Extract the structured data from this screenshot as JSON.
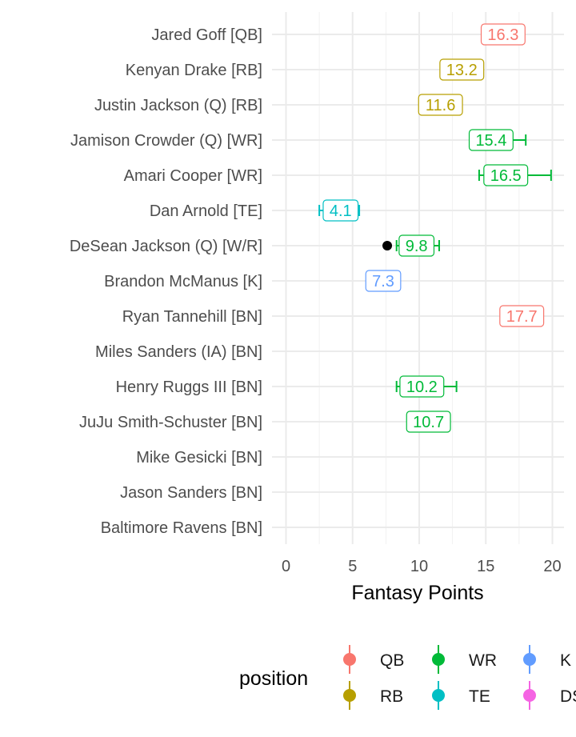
{
  "chart_data": {
    "type": "scatter",
    "xlabel": "Fantasy Points",
    "ylabel": "",
    "xlim": [
      -0.8,
      21
    ],
    "x_ticks": [
      0,
      5,
      10,
      15,
      20
    ],
    "grid": true,
    "legend_title": "position",
    "legend_position": "bottom",
    "colors": {
      "QB": "#F8766D",
      "RB": "#B79F00",
      "WR": "#00BA38",
      "TE": "#00BFC4",
      "K": "#619CFF",
      "DST": "#F564E3",
      "actual": "#000000"
    },
    "legend": [
      {
        "key": "QB",
        "label": "QB"
      },
      {
        "key": "RB",
        "label": "RB"
      },
      {
        "key": "WR",
        "label": "WR"
      },
      {
        "key": "TE",
        "label": "TE"
      },
      {
        "key": "K",
        "label": "K"
      },
      {
        "key": "DST",
        "label": "DST"
      }
    ],
    "players": [
      {
        "name": "Jared Goff [QB]",
        "position": "QB",
        "projection": 16.3,
        "label": "16.3",
        "low": 14.8,
        "high": 17.7
      },
      {
        "name": "Kenyan Drake [RB]",
        "position": "RB",
        "projection": 13.2,
        "label": "13.2",
        "low": null,
        "high": null
      },
      {
        "name": "Justin Jackson (Q) [RB]",
        "position": "RB",
        "projection": 11.6,
        "label": "11.6",
        "low": null,
        "high": null
      },
      {
        "name": "Jamison Crowder (Q) [WR]",
        "position": "WR",
        "projection": 15.4,
        "label": "15.4",
        "low": 13.8,
        "high": 18.0
      },
      {
        "name": "Amari Cooper [WR]",
        "position": "WR",
        "projection": 16.5,
        "label": "16.5",
        "low": 14.5,
        "high": 19.9
      },
      {
        "name": "Dan Arnold [TE]",
        "position": "TE",
        "projection": 4.1,
        "label": "4.1",
        "low": 2.5,
        "high": 5.5
      },
      {
        "name": "DeSean Jackson (Q) [W/R]",
        "position": "WR",
        "projection": 9.8,
        "label": "9.8",
        "low": 8.3,
        "high": 11.5,
        "actual": 7.6
      },
      {
        "name": "Brandon McManus [K]",
        "position": "K",
        "projection": 7.3,
        "label": "7.3",
        "low": null,
        "high": null
      },
      {
        "name": "Ryan Tannehill [BN]",
        "position": "QB",
        "projection": 17.7,
        "label": "17.7",
        "low": null,
        "high": null
      },
      {
        "name": "Miles Sanders (IA) [BN]",
        "position": "RB",
        "projection": null,
        "label": "",
        "low": null,
        "high": null
      },
      {
        "name": "Henry Ruggs III [BN]",
        "position": "WR",
        "projection": 10.2,
        "label": "10.2",
        "low": 8.3,
        "high": 12.8
      },
      {
        "name": "JuJu Smith-Schuster [BN]",
        "position": "WR",
        "projection": 10.7,
        "label": "10.7",
        "low": null,
        "high": null
      },
      {
        "name": "Mike Gesicki [BN]",
        "position": "TE",
        "projection": null,
        "label": "",
        "low": null,
        "high": null
      },
      {
        "name": "Jason Sanders [BN]",
        "position": "K",
        "projection": null,
        "label": "",
        "low": null,
        "high": null
      },
      {
        "name": "Baltimore Ravens [BN]",
        "position": "DST",
        "projection": null,
        "label": "",
        "low": null,
        "high": null
      }
    ]
  }
}
